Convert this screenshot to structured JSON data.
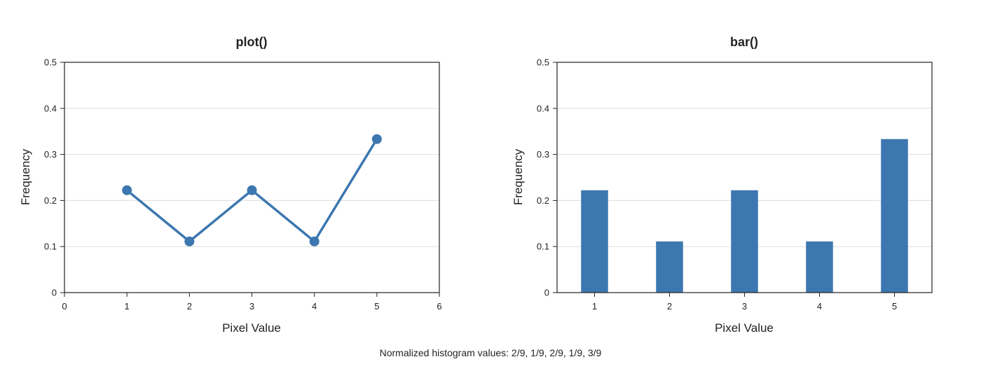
{
  "colors": {
    "series": "#3d77b0",
    "grid": "#dddddd",
    "axis": "#222222",
    "text": "#222222"
  },
  "caption": "Normalized histogram values: 2/9, 1/9, 2/9, 1/9, 3/9",
  "chart_data": [
    {
      "type": "line",
      "title": "plot()",
      "xlabel": "Pixel Value",
      "ylabel": "Frequency",
      "x": [
        1,
        2,
        3,
        4,
        5
      ],
      "series": [
        {
          "values": [
            0.2222,
            0.1111,
            0.2222,
            0.1111,
            0.3333
          ]
        }
      ],
      "markers": true,
      "xlim": [
        0,
        6
      ],
      "ylim": [
        0,
        0.5
      ],
      "xticks": [
        0,
        1,
        2,
        3,
        4,
        5,
        6
      ],
      "xtick_labels": [
        "0",
        "1",
        "2",
        "3",
        "4",
        "5",
        "6"
      ],
      "yticks": [
        0,
        0.1,
        0.2,
        0.3,
        0.4,
        0.5
      ],
      "ytick_labels": [
        "0",
        "0.1",
        "0.2",
        "0.3",
        "0.4",
        "0.5"
      ],
      "grid": "horizontal"
    },
    {
      "type": "bar",
      "title": "bar()",
      "xlabel": "Pixel Value",
      "ylabel": "Frequency",
      "categories": [
        "1",
        "2",
        "3",
        "4",
        "5"
      ],
      "values": [
        0.2222,
        0.1111,
        0.2222,
        0.1111,
        0.3333
      ],
      "ylim": [
        0,
        0.5
      ],
      "yticks": [
        0,
        0.1,
        0.2,
        0.3,
        0.4,
        0.5
      ],
      "ytick_labels": [
        "0",
        "0.1",
        "0.2",
        "0.3",
        "0.4",
        "0.5"
      ],
      "grid": "horizontal"
    }
  ]
}
